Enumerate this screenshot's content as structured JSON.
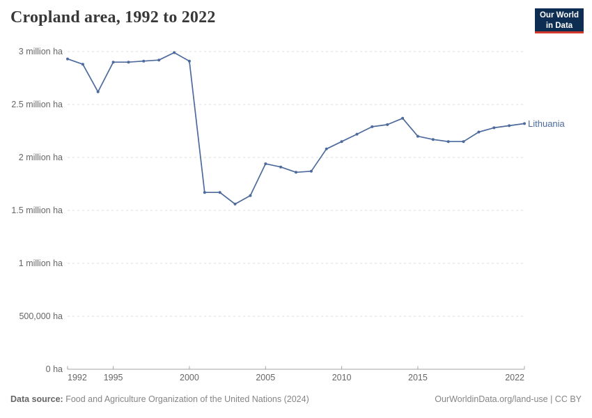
{
  "header": {
    "title": "Cropland area, 1992 to 2022",
    "logo": {
      "line1": "Our World",
      "line2": "in Data"
    }
  },
  "footer": {
    "source_label": "Data source:",
    "source_text": "Food and Agriculture Organization of the United Nations (2024)",
    "right_text": "OurWorldinData.org/land-use | CC BY"
  },
  "chart_data": {
    "type": "line",
    "title": "Cropland area, 1992 to 2022",
    "unit": "ha",
    "entity_label": "Lithuania",
    "x": [
      1992,
      1993,
      1994,
      1995,
      1996,
      1997,
      1998,
      1999,
      2000,
      2001,
      2002,
      2003,
      2004,
      2005,
      2006,
      2007,
      2008,
      2009,
      2010,
      2011,
      2012,
      2013,
      2014,
      2015,
      2016,
      2017,
      2018,
      2019,
      2020,
      2021,
      2022
    ],
    "series": [
      {
        "name": "Lithuania",
        "values_million_ha": [
          2.93,
          2.88,
          2.62,
          2.9,
          2.9,
          2.91,
          2.92,
          2.99,
          2.91,
          1.67,
          1.67,
          1.56,
          1.64,
          1.94,
          1.91,
          1.86,
          1.87,
          2.08,
          2.15,
          2.22,
          2.29,
          2.31,
          2.37,
          2.2,
          2.17,
          2.15,
          2.15,
          2.24,
          2.28,
          2.3,
          2.32
        ]
      }
    ],
    "x_ticks": [
      1992,
      1995,
      2000,
      2005,
      2010,
      2015,
      2022
    ],
    "y_ticks": [
      {
        "value": 0,
        "label": "0 ha"
      },
      {
        "value": 0.5,
        "label": "500,000 ha"
      },
      {
        "value": 1,
        "label": "1 million ha"
      },
      {
        "value": 1.5,
        "label": "1.5 million ha"
      },
      {
        "value": 2,
        "label": "2 million ha"
      },
      {
        "value": 2.5,
        "label": "2.5 million ha"
      },
      {
        "value": 3,
        "label": "3 million ha"
      }
    ],
    "xlim": [
      1992,
      2022
    ],
    "ylim": [
      0,
      3
    ],
    "grid": "horizontal-dashed",
    "legend_position": "end-of-line",
    "colors": {
      "line": "#4C6A9C",
      "grid": "#dcdcdc",
      "axis": "#a3a3a3",
      "tick_text": "#666666",
      "title_text": "#383838",
      "footer_text": "#858585",
      "logo_bg": "#0D2D52",
      "logo_accent": "#D4382D"
    }
  }
}
